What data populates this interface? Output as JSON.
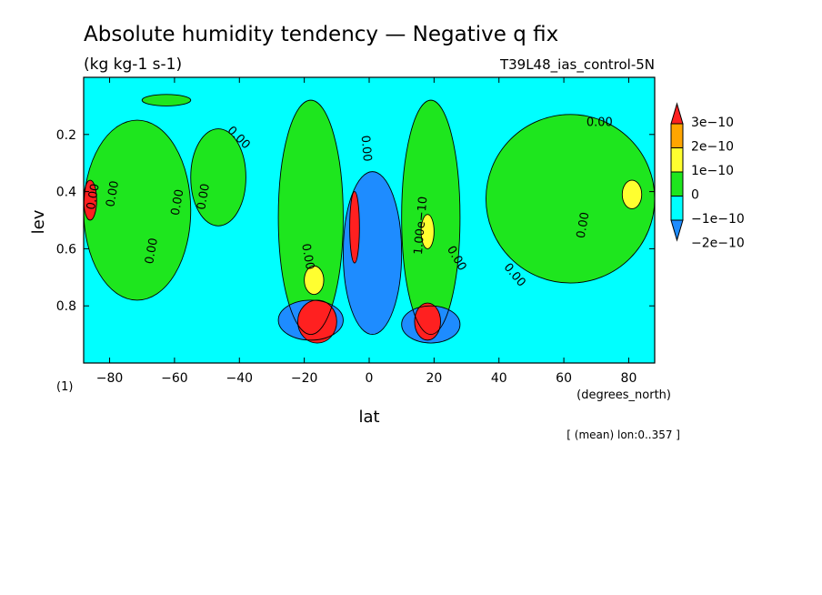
{
  "chart_data": {
    "type": "heatmap",
    "title": "Absolute humidity tendency — Negative q fix",
    "units": "(kg kg-1 s-1)",
    "run_label": "T39L48_ias_control-5N",
    "xlabel": "lat",
    "x_units": "(degrees_north)",
    "ylabel": "lev",
    "y_units": "(1)",
    "footnote": "[ (mean) lon:0..357 ]",
    "xlim": [
      -88,
      88
    ],
    "ylim": [
      0.0,
      1.0
    ],
    "y_inverted": true,
    "x_ticks": [
      -80,
      -60,
      -40,
      -20,
      0,
      20,
      40,
      60,
      80
    ],
    "x_tick_labels": [
      "−80",
      "−60",
      "−40",
      "−20",
      "0",
      "20",
      "40",
      "60",
      "80"
    ],
    "y_ticks": [
      0.2,
      0.4,
      0.6,
      0.8
    ],
    "y_tick_labels": [
      "0.2",
      "0.4",
      "0.6",
      "0.8"
    ],
    "background_color": "#00ffff",
    "colorbar": {
      "levels": [
        {
          "label": "3e−10",
          "color": "#ff2020"
        },
        {
          "label": "2e−10",
          "color": "#ffa500"
        },
        {
          "label": "1e−10",
          "color": "#ffff30"
        },
        {
          "label": "0",
          "color": "#1ee61e"
        },
        {
          "label": "−1e−10",
          "color": "#00ffff"
        },
        {
          "label": "−2e−10",
          "color": "#1e8cff"
        }
      ]
    },
    "contour_labels": [
      {
        "text": "0.00",
        "lat": 71,
        "lev": 0.17,
        "rot": 0
      },
      {
        "text": "0.00",
        "lat": -41,
        "lev": 0.22,
        "rot": 45
      },
      {
        "text": "0.00",
        "lat": -84,
        "lev": 0.42,
        "rot": -80
      },
      {
        "text": "0.00",
        "lat": -78,
        "lev": 0.41,
        "rot": -80
      },
      {
        "text": "0.00",
        "lat": -66,
        "lev": 0.61,
        "rot": -80
      },
      {
        "text": "0.00",
        "lat": -58,
        "lev": 0.44,
        "rot": -80
      },
      {
        "text": "0.00",
        "lat": -50,
        "lev": 0.42,
        "rot": -80
      },
      {
        "text": "0.00",
        "lat": -20,
        "lev": 0.63,
        "rot": 80
      },
      {
        "text": "0.00",
        "lat": -2,
        "lev": 0.25,
        "rot": 85
      },
      {
        "text": "1.00e−10",
        "lat": 17,
        "lev": 0.52,
        "rot": -85
      },
      {
        "text": "0.00",
        "lat": 26,
        "lev": 0.64,
        "rot": 60
      },
      {
        "text": "0.00",
        "lat": 44,
        "lev": 0.7,
        "rot": 50
      },
      {
        "text": "0.00",
        "lat": 67,
        "lev": 0.52,
        "rot": -80
      }
    ],
    "regions": [
      {
        "level": "0",
        "lat_range": [
          -88,
          -55
        ],
        "lev_range": [
          0.15,
          0.78
        ]
      },
      {
        "level": "0",
        "lat_range": [
          -55,
          -38
        ],
        "lev_range": [
          0.18,
          0.52
        ]
      },
      {
        "level": "0",
        "lat_range": [
          -70,
          -55
        ],
        "lev_range": [
          0.06,
          0.1
        ]
      },
      {
        "level": "0",
        "lat_range": [
          -28,
          -8
        ],
        "lev_range": [
          0.08,
          0.9
        ]
      },
      {
        "level": "0",
        "lat_range": [
          10,
          28
        ],
        "lev_range": [
          0.08,
          0.9
        ]
      },
      {
        "level": "0",
        "lat_range": [
          36,
          88
        ],
        "lev_range": [
          0.13,
          0.72
        ]
      },
      {
        "level": "−2e−10",
        "lat_range": [
          -8,
          10
        ],
        "lev_range": [
          0.33,
          0.9
        ]
      },
      {
        "level": "−2e−10",
        "lat_range": [
          -28,
          -8
        ],
        "lev_range": [
          0.78,
          0.92
        ]
      },
      {
        "level": "−2e−10",
        "lat_range": [
          10,
          28
        ],
        "lev_range": [
          0.8,
          0.93
        ]
      },
      {
        "level": "3e−10",
        "lat_range": [
          -22,
          -10
        ],
        "lev_range": [
          0.78,
          0.93
        ]
      },
      {
        "level": "3e−10",
        "lat_range": [
          -6,
          -3
        ],
        "lev_range": [
          0.4,
          0.65
        ]
      },
      {
        "level": "3e−10",
        "lat_range": [
          -88,
          -84
        ],
        "lev_range": [
          0.36,
          0.5
        ]
      },
      {
        "level": "3e−10",
        "lat_range": [
          14,
          22
        ],
        "lev_range": [
          0.79,
          0.92
        ]
      },
      {
        "level": "1e−10",
        "lat_range": [
          16,
          20
        ],
        "lev_range": [
          0.48,
          0.6
        ]
      },
      {
        "level": "1e−10",
        "lat_range": [
          -20,
          -14
        ],
        "lev_range": [
          0.66,
          0.76
        ]
      },
      {
        "level": "1e−10",
        "lat_range": [
          78,
          84
        ],
        "lev_range": [
          0.36,
          0.46
        ]
      }
    ]
  }
}
